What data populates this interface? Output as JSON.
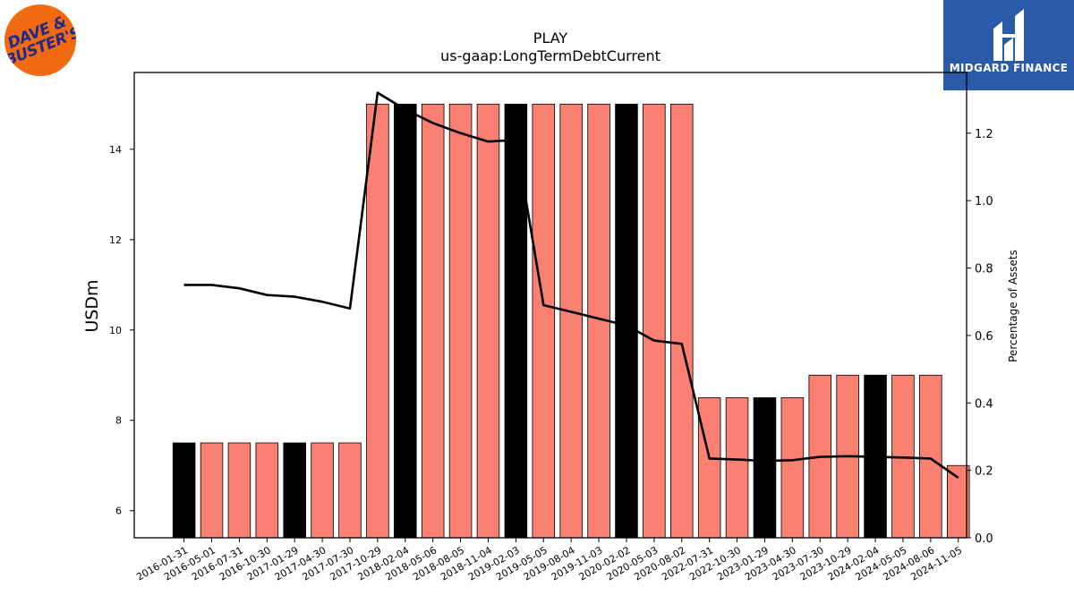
{
  "logos": {
    "left": {
      "line1": "DAVE &",
      "line2": "BUSTER'S"
    },
    "right": {
      "brand": "MIDGARD FINANCE"
    }
  },
  "chart_data": {
    "type": "bar",
    "title": "PLAY",
    "subtitle": "us-gaap:LongTermDebtCurrent",
    "ylabel": "USDm",
    "y2label": "Percentage of Assets",
    "ylim": [
      5.4,
      15.7
    ],
    "y2lim": [
      0.0,
      1.38
    ],
    "yticks": [
      6,
      8,
      10,
      12,
      14
    ],
    "y2ticks": [
      0.0,
      0.2,
      0.4,
      0.6,
      0.8,
      1.0,
      1.2
    ],
    "y2tick_labels": [
      "0.0",
      "0.2",
      "0.4",
      "0.6",
      "0.8",
      "1.0",
      "1.2"
    ],
    "categories": [
      "2016-01-31",
      "2016-05-01",
      "2016-07-31",
      "2016-10-30",
      "2017-01-29",
      "2017-04-30",
      "2017-07-30",
      "2017-10-29",
      "2018-02-04",
      "2018-05-06",
      "2018-08-05",
      "2018-11-04",
      "2019-02-03",
      "2019-05-05",
      "2019-08-04",
      "2019-11-03",
      "2020-02-02",
      "2020-05-03",
      "2020-08-02",
      "2022-07-31",
      "2022-10-30",
      "2023-01-29",
      "2023-04-30",
      "2023-07-30",
      "2023-10-29",
      "2024-02-04",
      "2024-05-05",
      "2024-08-06",
      "2024-11-05"
    ],
    "series": [
      {
        "type": "bar",
        "axis": "left",
        "values": [
          7.5,
          7.5,
          7.5,
          7.5,
          7.5,
          7.5,
          7.5,
          15,
          15,
          15,
          15,
          15,
          15,
          15,
          15,
          15,
          15,
          15,
          15,
          8.5,
          8.5,
          8.5,
          8.5,
          9,
          9,
          9,
          9,
          9,
          7
        ],
        "fiscal_year_end": [
          true,
          false,
          false,
          false,
          true,
          false,
          false,
          false,
          true,
          false,
          false,
          false,
          true,
          false,
          false,
          false,
          true,
          false,
          false,
          false,
          false,
          true,
          false,
          false,
          false,
          true,
          false,
          false,
          false
        ]
      },
      {
        "type": "line",
        "axis": "right",
        "values": [
          0.75,
          0.75,
          0.74,
          0.72,
          0.715,
          0.7,
          0.68,
          1.32,
          1.27,
          1.23,
          1.2,
          1.175,
          1.18,
          0.69,
          0.67,
          0.65,
          0.63,
          0.585,
          0.575,
          0.235,
          0.232,
          0.228,
          0.23,
          0.24,
          0.242,
          0.24,
          0.238,
          0.235,
          0.178
        ]
      }
    ],
    "colors": {
      "bar": "#fa8072",
      "bar_fiscal_year_end": "#000000",
      "line": "#000000"
    },
    "grid": false
  }
}
